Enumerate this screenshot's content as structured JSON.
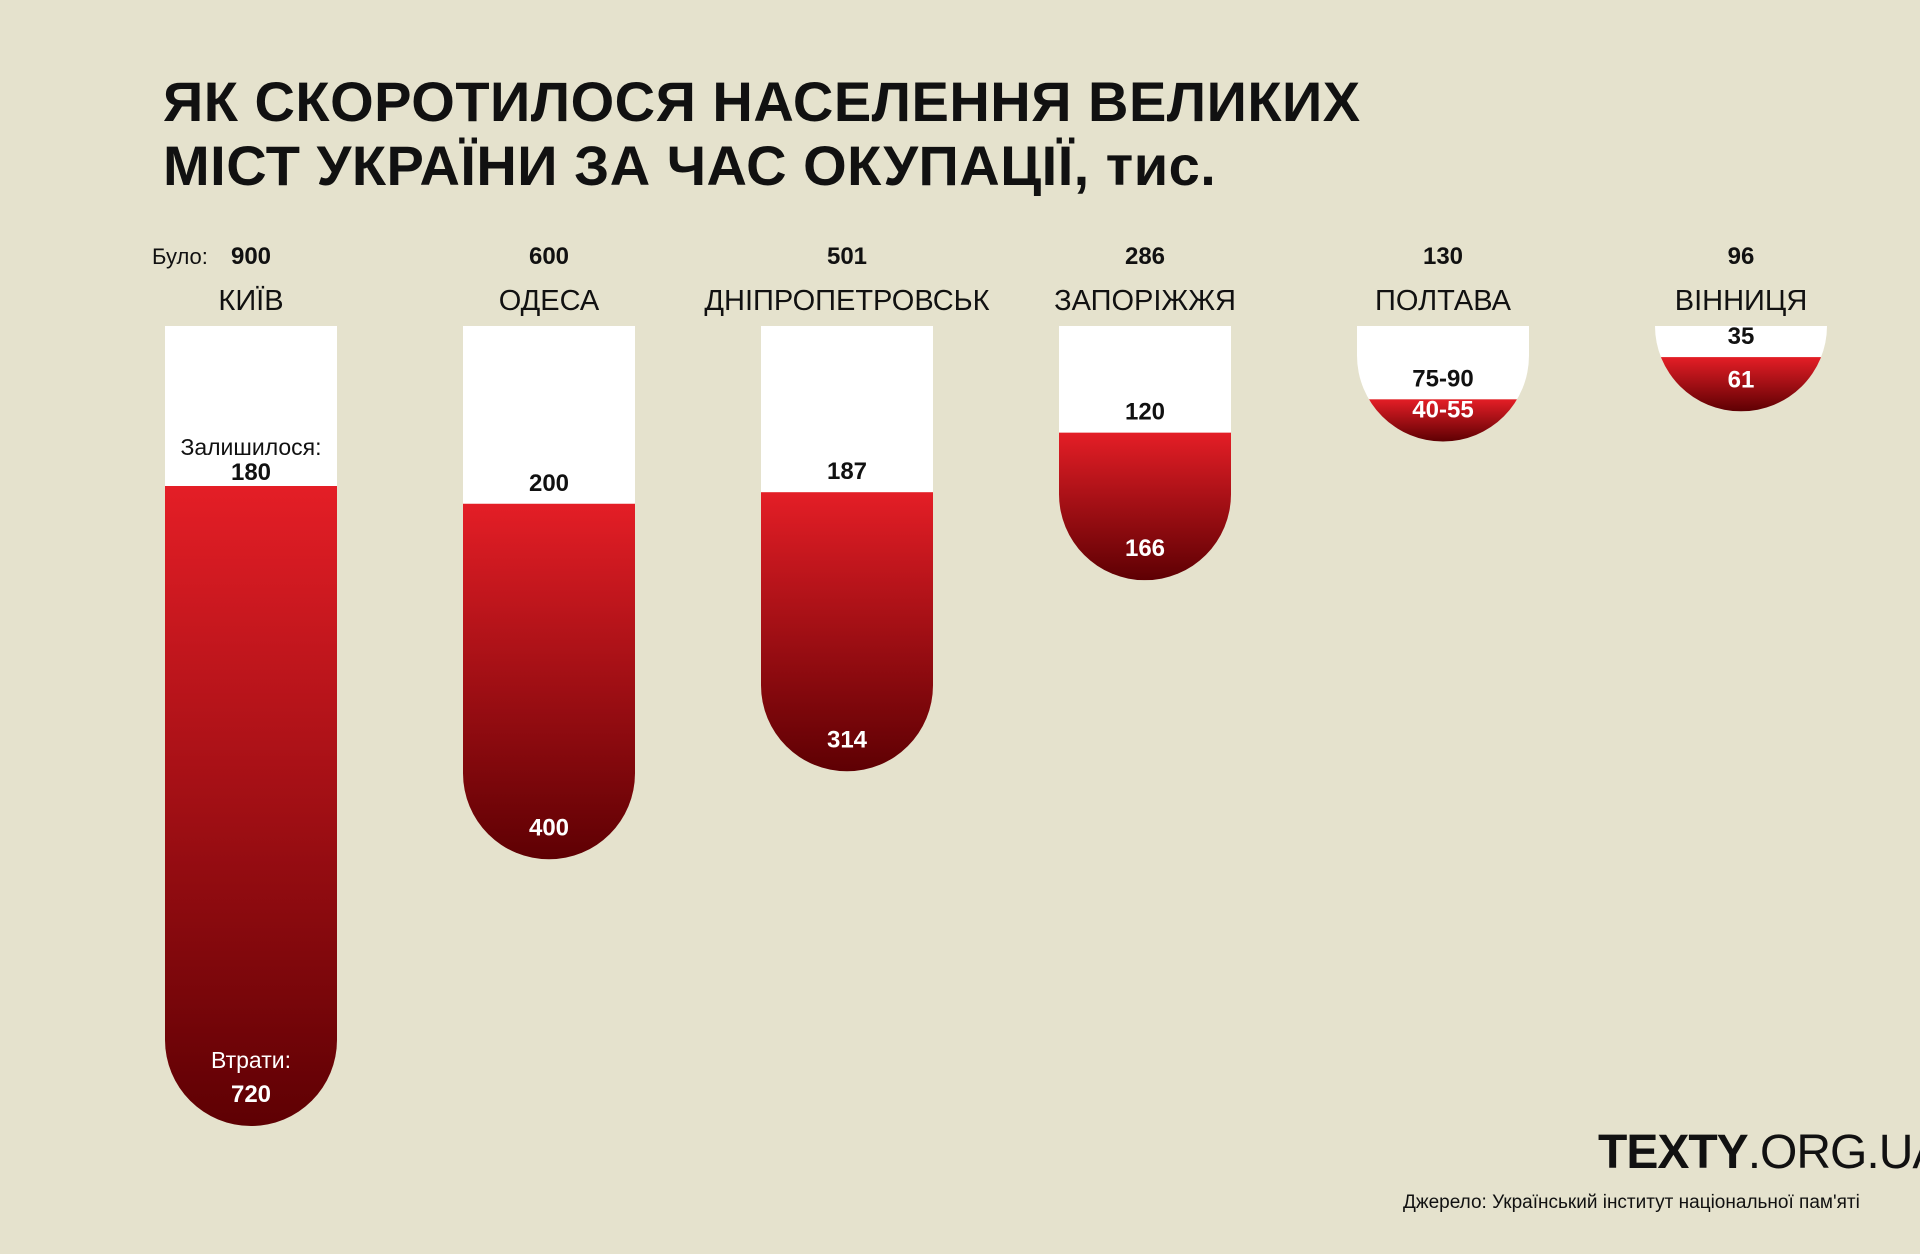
{
  "title": {
    "line1": "ЯК СКОРОТИЛОСЯ НАСЕЛЕННЯ ВЕЛИКИХ",
    "line2": "МІСТ УКРАЇНИ ЗА ЧАС ОКУПАЦІЇ, тис."
  },
  "logo": {
    "bold": "TEXTY",
    "rest": ".ORG.UA"
  },
  "source": "Джерело: Український інститут національної пам'яті",
  "colors": {
    "background": "#e5e2cd",
    "remaining": "#ffffff",
    "loss_top": "#e41e26",
    "loss_bottom": "#5e0003"
  },
  "chart_data": {
    "type": "bar",
    "subtype": "stacked",
    "unit": "тис.",
    "labels": {
      "before": "Було:",
      "remaining": "Залишилося:",
      "losses": "Втрати:"
    },
    "categories": [
      "КИЇВ",
      "ОДЕСА",
      "ДНІПРОПЕТРОВСЬК",
      "ЗАПОРІЖЖЯ",
      "ПОЛТАВА",
      "ВІННИЦЯ"
    ],
    "before": [
      900,
      600,
      501,
      286,
      130,
      96
    ],
    "series": [
      {
        "name": "Залишилося",
        "values": [
          180,
          200,
          187,
          120,
          82.5,
          35
        ],
        "labels": [
          "180",
          "200",
          "187",
          "120",
          "75-90",
          "35"
        ]
      },
      {
        "name": "Втрати",
        "values": [
          720,
          400,
          314,
          166,
          47.5,
          61
        ],
        "labels": [
          "720",
          "400",
          "314",
          "166",
          "40-55",
          "61"
        ]
      }
    ]
  }
}
